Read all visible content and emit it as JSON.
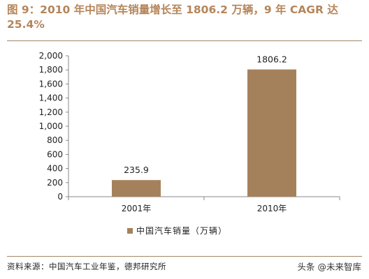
{
  "title": "图 9：2010 年中国汽车销量增长至 1806.2 万辆，9 年 CAGR 达 25.4%",
  "source": "资料来源：中国汽车工业年鉴，德邦研究所",
  "watermark": "头条 @未来智库",
  "chart_data": {
    "type": "bar",
    "categories": [
      "2001年",
      "2010年"
    ],
    "series": [
      {
        "name": "中国汽车销量（万辆）",
        "values": [
          235.9,
          1806.2
        ]
      }
    ],
    "data_labels": [
      "235.9",
      "1806.2"
    ],
    "ylim": [
      0,
      2000
    ],
    "yticks": [
      0,
      200,
      400,
      600,
      800,
      1000,
      1200,
      1400,
      1600,
      1800,
      2000
    ],
    "ytick_labels": [
      "0",
      "200",
      "400",
      "600",
      "800",
      "1,000",
      "1,200",
      "1,400",
      "1,600",
      "1,800",
      "2,000"
    ],
    "grid": false,
    "legend_position": "bottom",
    "bar_color": "#a5815b"
  }
}
